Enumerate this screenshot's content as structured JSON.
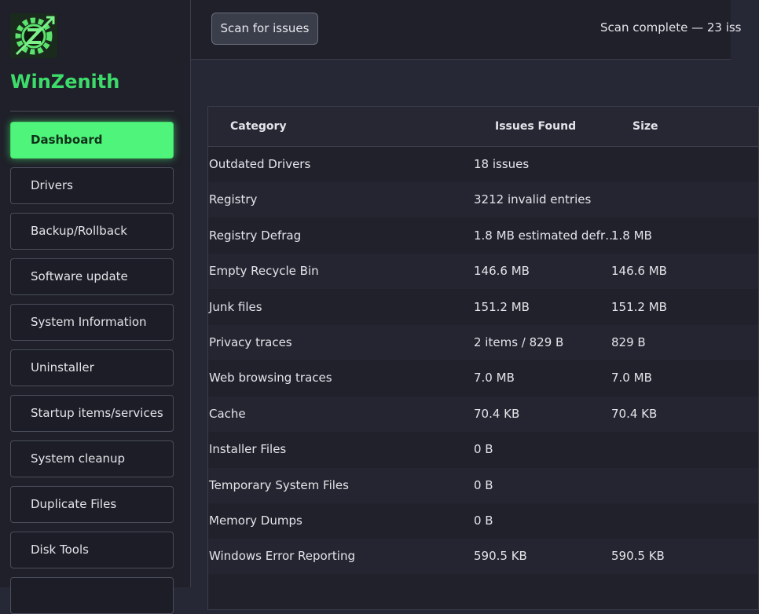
{
  "sidebar": {
    "app_name": "WinZenith",
    "nav": [
      "Dashboard",
      "Drivers",
      "Backup/Rollback",
      "Software update",
      "System Information",
      "Uninstaller",
      "Startup items/services",
      "System cleanup",
      "Duplicate Files",
      "Disk Tools"
    ],
    "active": "Dashboard"
  },
  "toolbar": {
    "scan_button": "Scan for issues",
    "status": "Scan complete — 23 iss"
  },
  "table": {
    "headers": [
      "Category",
      "Issues Found",
      "Size"
    ],
    "rows": [
      {
        "category": "Outdated Drivers",
        "issues": "18 issues"
      },
      {
        "category": "Registry",
        "issues": "3212 invalid entries"
      },
      {
        "category": "Registry Defrag",
        "issues": "1.8 MB estimated defr…",
        "size": "1.8 MB"
      },
      {
        "category": "Empty Recycle Bin",
        "issues": "146.6 MB",
        "size": "146.6 MB"
      },
      {
        "category": "Junk files",
        "issues": "151.2 MB",
        "size": "151.2 MB"
      },
      {
        "category": "Privacy traces",
        "issues": "2 items / 829 B",
        "size": "829 B"
      },
      {
        "category": "Web browsing traces",
        "issues": "7.0 MB",
        "size": "7.0 MB"
      },
      {
        "category": "Cache",
        "issues": "70.4 KB",
        "size": "70.4 KB"
      },
      {
        "category": "Installer Files",
        "issues": "0 B"
      },
      {
        "category": "Temporary System Files",
        "issues": "0 B"
      },
      {
        "category": "Memory Dumps",
        "issues": "0 B"
      },
      {
        "category": "Windows Error Reporting",
        "issues": "590.5 KB",
        "size": "590.5 KB"
      }
    ]
  }
}
